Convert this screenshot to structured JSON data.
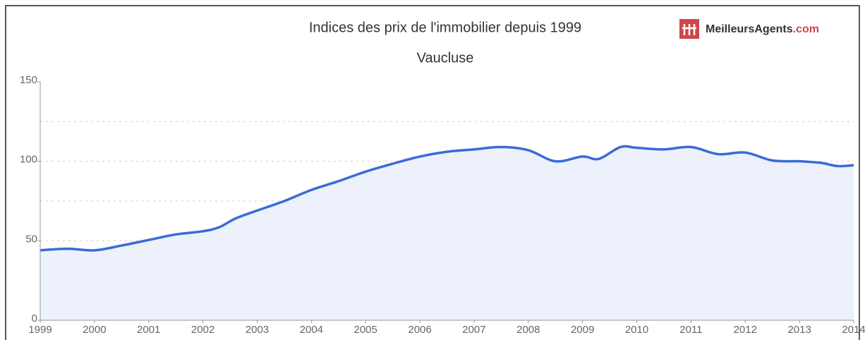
{
  "chart_data": {
    "type": "area",
    "title": "Indices des prix de l'immobilier depuis 1999",
    "subtitle": "Vaucluse",
    "brand": "MeilleursAgents",
    "brand_suffix": ".com",
    "x": [
      1999,
      1999.5,
      2000,
      2000.5,
      2001,
      2001.5,
      2002,
      2002.3,
      2002.6,
      2003,
      2003.5,
      2004,
      2004.5,
      2005,
      2005.5,
      2006,
      2006.5,
      2007,
      2007.5,
      2008,
      2008.5,
      2009,
      2009.3,
      2009.7,
      2010,
      2010.5,
      2011,
      2011.5,
      2012,
      2012.5,
      2013,
      2013.4,
      2013.7,
      2014
    ],
    "series": [
      {
        "color": "#3a6bd6",
        "values": [
          44,
          45,
          44,
          47,
          50.5,
          54,
          56,
          58.5,
          64,
          69,
          75,
          82,
          87.5,
          93.5,
          98.5,
          103,
          106,
          107.5,
          109,
          107,
          100,
          103,
          101.5,
          109,
          108.5,
          107.5,
          109,
          104.5,
          105.5,
          100.5,
          100,
          99,
          97,
          97.5
        ]
      }
    ],
    "fill": "#edf1fb",
    "xlim": [
      1999,
      2014
    ],
    "xticks": [
      1999,
      2000,
      2001,
      2002,
      2003,
      2004,
      2005,
      2006,
      2007,
      2008,
      2009,
      2010,
      2011,
      2012,
      2013,
      2014
    ],
    "ylim": [
      0,
      150
    ],
    "yticks": [
      0,
      50,
      100,
      150
    ],
    "ygrid": [
      25,
      50,
      75,
      100,
      125
    ]
  }
}
